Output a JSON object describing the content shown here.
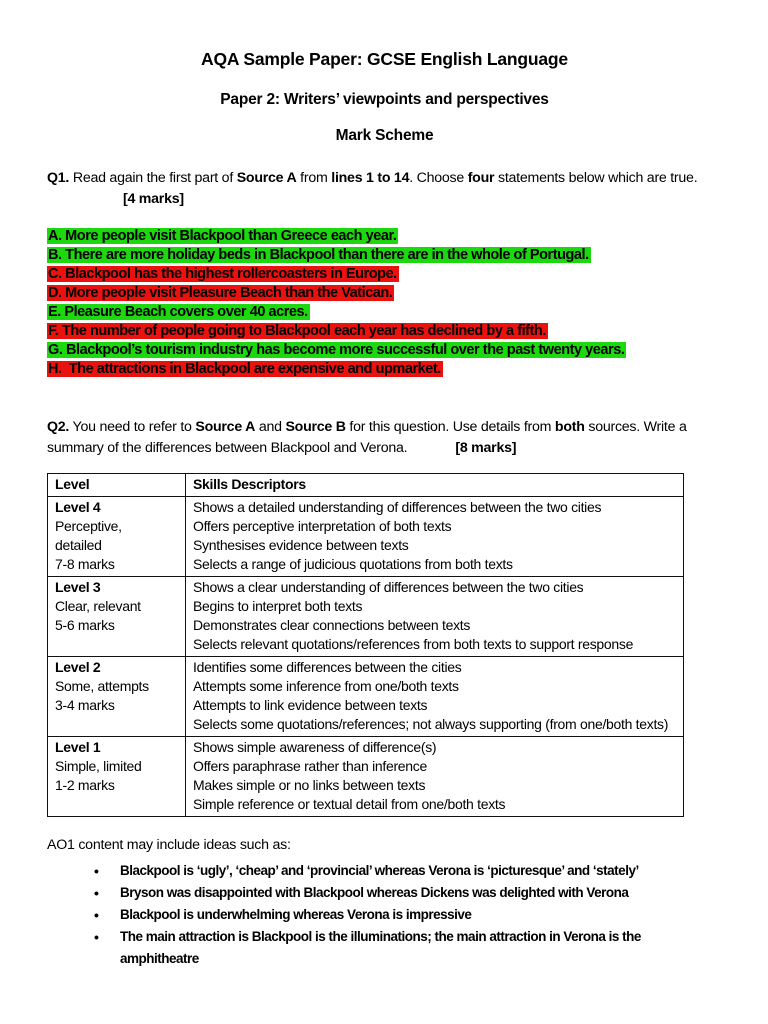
{
  "header": {
    "title": "AQA Sample Paper: GCSE English Language",
    "subtitle": "Paper 2: Writers’ viewpoints and perspectives",
    "section_heading": "Mark Scheme"
  },
  "q1": {
    "number": "Q1.",
    "t1": " Read again the first part of ",
    "source_a": "Source A",
    "t2": " from ",
    "lines": "lines 1 to 14",
    "t3": ". Choose ",
    "four": "four",
    "t4": " statements below which are true.",
    "marks": "[4 marks]"
  },
  "statements": [
    {
      "text": "A. More people visit Blackpool than Greece each year.",
      "highlight": "green"
    },
    {
      "text": "B. There are more holiday beds in Blackpool than there are in the whole of Portugal.",
      "highlight": "green"
    },
    {
      "text": "C. Blackpool has the highest rollercoasters in Europe.",
      "highlight": "red"
    },
    {
      "text": "D. More people visit Pleasure Beach than the Vatican.",
      "highlight": "red"
    },
    {
      "text": "E. Pleasure Beach covers over 40 acres.",
      "highlight": "green"
    },
    {
      "text": "F. The number of people going to Blackpool each year has declined by a fifth.",
      "highlight": "red"
    },
    {
      "text": "G. Blackpool’s tourism industry has become more successful over the past twenty years.",
      "highlight": "green"
    },
    {
      "text": "H.  The attractions in Blackpool are expensive and upmarket.",
      "highlight": "red"
    }
  ],
  "q2": {
    "number": "Q2.",
    "t1": " You need to refer to ",
    "source_a": "Source A",
    "t2": " and ",
    "source_b": "Source B",
    "t3": " for this question. Use details from ",
    "both": "both",
    "t4": " sources. Write a summary of the differences between Blackpool and Verona.",
    "marks": "[8 marks]"
  },
  "table": {
    "headers": [
      "Level",
      "Skills Descriptors"
    ],
    "rows": [
      {
        "level": "Level 4",
        "level_sub": "Perceptive,\ndetailed\n7-8 marks",
        "descriptors": [
          "Shows a detailed understanding of differences between the two cities",
          "Offers perceptive interpretation of both texts",
          "Synthesises evidence between texts",
          "Selects a range of judicious quotations from both texts"
        ]
      },
      {
        "level": "Level 3",
        "level_sub": "Clear, relevant\n5-6 marks",
        "descriptors": [
          "Shows a clear understanding of differences between the two cities",
          "Begins to interpret both texts",
          "Demonstrates clear connections between texts",
          "Selects relevant quotations/references from both texts to support response"
        ]
      },
      {
        "level": "Level 2",
        "level_sub": "Some, attempts\n3-4 marks",
        "descriptors": [
          "Identifies some differences between the cities",
          "Attempts some inference from one/both texts",
          "Attempts to link evidence between texts",
          "Selects some quotations/references; not always supporting (from one/both texts)"
        ]
      },
      {
        "level": "Level 1",
        "level_sub": "Simple, limited\n1-2 marks",
        "descriptors": [
          "Shows simple awareness of difference(s)",
          "Offers paraphrase rather than inference",
          "Makes simple or no links between texts",
          "Simple reference or textual detail from one/both texts"
        ]
      }
    ]
  },
  "ao1": {
    "heading": "AO1 content may include ideas such as:",
    "bullet_glyph": "•",
    "bullets": [
      "Blackpool is ‘ugly’, ‘cheap’ and ‘provincial’ whereas Verona is ‘picturesque’ and ‘stately’",
      "Bryson was disappointed with Blackpool whereas Dickens was delighted with Verona",
      "Blackpool is underwhelming whereas Verona is impressive",
      "The main attraction is Blackpool is the illuminations; the main attraction in Verona is the amphitheatre"
    ]
  },
  "colors": {
    "highlight_green": "#1dd80f",
    "highlight_red": "#ea120e",
    "text": "#000000",
    "page_background": "#ffffff"
  }
}
